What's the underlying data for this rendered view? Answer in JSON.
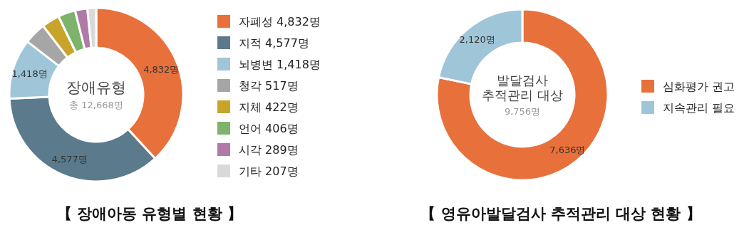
{
  "chart_data": [
    {
      "type": "donut",
      "title": "장애유형",
      "subtitle": "총 12,668명",
      "categories": [
        "자폐성 4,832명",
        "지적 4,577명",
        "뇌병변 1,418명",
        "청각 517명",
        "지체 422명",
        "언어 406명",
        "시각 289명",
        "기타 207명"
      ],
      "values": [
        4832,
        4577,
        1418,
        517,
        422,
        406,
        289,
        207
      ],
      "value_labels": [
        "4,832명",
        "4,577명",
        "1,418명",
        null,
        null,
        null,
        null,
        null
      ],
      "colors": [
        "#e8703a",
        "#5b7a8c",
        "#9fc5d8",
        "#a6a6a6",
        "#c9a42a",
        "#7db36b",
        "#b07aa6",
        "#d9d9d9"
      ],
      "legend": "right",
      "annotations": [
        "【 장애아동 유형별 현황 】"
      ]
    },
    {
      "type": "donut",
      "title": "발달검사 추적관리 대상",
      "subtitle": "9,756명",
      "categories": [
        "심화평가 권고",
        "지속관리 필요"
      ],
      "values": [
        7636,
        2120
      ],
      "value_labels": [
        "7,636명",
        "2,120명"
      ],
      "colors": [
        "#e8703a",
        "#9fc5d8"
      ],
      "legend": "right",
      "annotations": [
        "【 영유아발달검사 추적관리 대상 현황 】"
      ]
    }
  ]
}
